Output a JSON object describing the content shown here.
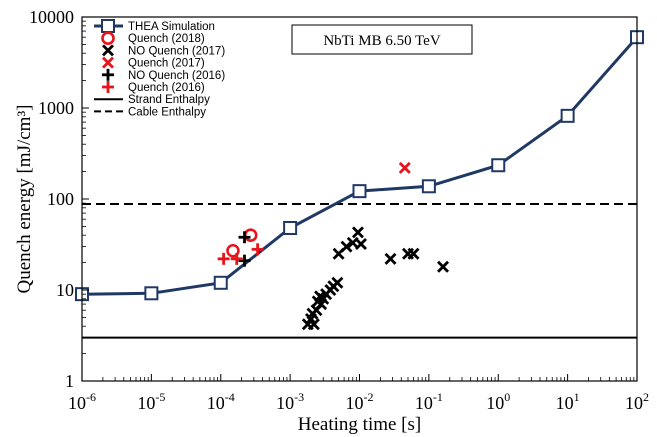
{
  "chart_data": {
    "type": "scatter",
    "annotation": "NbTi MB 6.50 TeV",
    "xlabel": "Heating time [s]",
    "ylabel": "Quench energy [mJ/cm³]",
    "x_scale": "log",
    "y_scale": "log",
    "xlim": [
      1e-06,
      100
    ],
    "ylim": [
      1,
      10000
    ],
    "x_ticks": [
      {
        "base": "10",
        "exp": "-6"
      },
      {
        "base": "10",
        "exp": "-5"
      },
      {
        "base": "10",
        "exp": "-4"
      },
      {
        "base": "10",
        "exp": "-3"
      },
      {
        "base": "10",
        "exp": "-2"
      },
      {
        "base": "10",
        "exp": "-1"
      },
      {
        "base": "10",
        "exp": "0"
      },
      {
        "base": "10",
        "exp": "1"
      },
      {
        "base": "10",
        "exp": "2"
      }
    ],
    "y_ticks": [
      "1",
      "10",
      "100",
      "1000",
      "10000"
    ],
    "grid": false,
    "legend_position": "top-left",
    "series": [
      {
        "name": "THEA Simulation",
        "marker": "square-open",
        "line": "solid",
        "color": "#1f3864",
        "points": [
          [
            1e-06,
            9
          ],
          [
            1e-05,
            9.2
          ],
          [
            0.0001,
            12
          ],
          [
            0.001,
            48
          ],
          [
            0.01,
            122
          ],
          [
            0.1,
            138
          ],
          [
            1,
            235
          ],
          [
            10,
            820
          ],
          [
            100,
            6000
          ]
        ]
      },
      {
        "name": "Quench (2018)",
        "marker": "circle-open",
        "color": "#e8141c",
        "points": [
          [
            0.00015,
            27
          ],
          [
            0.00027,
            40
          ]
        ]
      },
      {
        "name": "NO Quench (2017)",
        "marker": "x",
        "color": "#000000",
        "points": [
          [
            0.0018,
            4.2
          ],
          [
            0.002,
            4.8
          ],
          [
            0.0021,
            5.5
          ],
          [
            0.0022,
            4.2
          ],
          [
            0.0024,
            6
          ],
          [
            0.0025,
            7.5
          ],
          [
            0.0027,
            8.5
          ],
          [
            0.0028,
            7
          ],
          [
            0.003,
            8
          ],
          [
            0.0033,
            9
          ],
          [
            0.0038,
            10
          ],
          [
            0.0042,
            11
          ],
          [
            0.0048,
            12
          ],
          [
            0.005,
            25
          ],
          [
            0.0065,
            30
          ],
          [
            0.008,
            33
          ],
          [
            0.0095,
            43
          ],
          [
            0.0105,
            32
          ],
          [
            0.028,
            22
          ],
          [
            0.05,
            25
          ],
          [
            0.06,
            25
          ],
          [
            0.16,
            18
          ]
        ]
      },
      {
        "name": "Quench (2017)",
        "marker": "x",
        "color": "#e8141c",
        "points": [
          [
            0.045,
            220
          ]
        ]
      },
      {
        "name": "NO Quench (2016)",
        "marker": "plus",
        "color": "#000000",
        "points": [
          [
            0.00022,
            21
          ],
          [
            0.00022,
            38
          ]
        ]
      },
      {
        "name": "Quench (2016)",
        "marker": "plus",
        "color": "#e8141c",
        "points": [
          [
            0.00011,
            22
          ],
          [
            0.00017,
            22
          ],
          [
            0.00034,
            28
          ]
        ]
      },
      {
        "name": "Strand Enthalpy",
        "marker": "none",
        "line": "solid",
        "color": "#000000",
        "hline": 3
      },
      {
        "name": "Cable Enthalpy",
        "marker": "none",
        "line": "dashed",
        "color": "#000000",
        "hline": 88
      }
    ]
  }
}
